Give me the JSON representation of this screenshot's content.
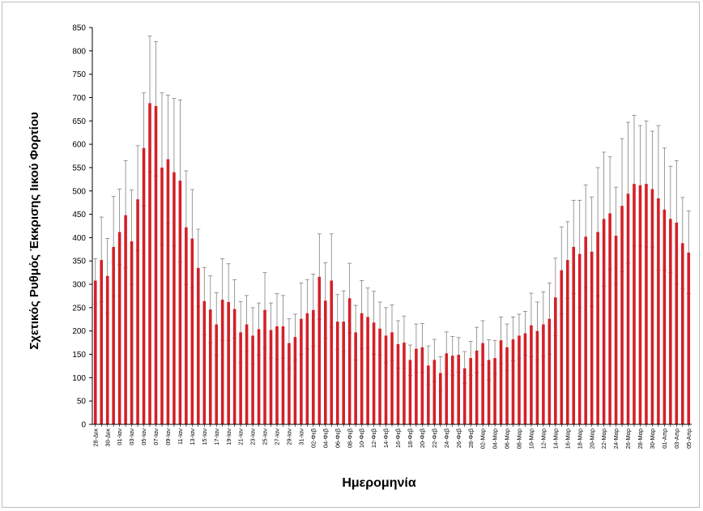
{
  "chart_data": {
    "type": "bar",
    "title": "",
    "xlabel": "Ημερομηνία",
    "ylabel": "Σχετικός Ρυθμός Έκκρισης Ιικού Φορτίου",
    "ylim": [
      0,
      850
    ],
    "yticks": [
      0,
      50,
      100,
      150,
      200,
      250,
      300,
      350,
      400,
      450,
      500,
      550,
      600,
      650,
      700,
      750,
      800,
      850
    ],
    "grid": false,
    "legend": "none",
    "colors": {
      "bar": "#d42027",
      "error_bar": "#808080",
      "axis": "#000000"
    },
    "categories": [
      "28-Δεκ",
      "29-Δεκ",
      "30-Δεκ",
      "31-Δεκ",
      "01-Ιαν",
      "02-Ιαν",
      "03-Ιαν",
      "04-Ιαν",
      "05-Ιαν",
      "06-Ιαν",
      "07-Ιαν",
      "08-Ιαν",
      "09-Ιαν",
      "10-Ιαν",
      "11-Ιαν",
      "12-Ιαν",
      "13-Ιαν",
      "14-Ιαν",
      "15-Ιαν",
      "16-Ιαν",
      "17-Ιαν",
      "18-Ιαν",
      "19-Ιαν",
      "20-Ιαν",
      "21-Ιαν",
      "22-Ιαν",
      "23-Ιαν",
      "24-Ιαν",
      "25-Ιαν",
      "26-Ιαν",
      "27-Ιαν",
      "28-Ιαν",
      "29-Ιαν",
      "30-Ιαν",
      "31-Ιαν",
      "01-Φεβ",
      "02-Φεβ",
      "03-Φεβ",
      "04-Φεβ",
      "05-Φεβ",
      "06-Φεβ",
      "07-Φεβ",
      "08-Φεβ",
      "09-Φεβ",
      "10-Φεβ",
      "11-Φεβ",
      "12-Φεβ",
      "13-Φεβ",
      "14-Φεβ",
      "15-Φεβ",
      "16-Φεβ",
      "17-Φεβ",
      "18-Φεβ",
      "19-Φεβ",
      "20-Φεβ",
      "21-Φεβ",
      "22-Φεβ",
      "23-Φεβ",
      "24-Φεβ",
      "25-Φεβ",
      "26-Φεβ",
      "27-Φεβ",
      "28-Φεβ",
      "01-Μαρ",
      "02-Μαρ",
      "03-Μαρ",
      "04-Μαρ",
      "05-Μαρ",
      "06-Μαρ",
      "07-Μαρ",
      "08-Μαρ",
      "09-Μαρ",
      "10-Μαρ",
      "11-Μαρ",
      "12-Μαρ",
      "13-Μαρ",
      "14-Μαρ",
      "15-Μαρ",
      "16-Μαρ",
      "17-Μαρ",
      "18-Μαρ",
      "19-Μαρ",
      "20-Μαρ",
      "21-Μαρ",
      "22-Μαρ",
      "23-Μαρ",
      "24-Μαρ",
      "25-Μαρ",
      "26-Μαρ",
      "27-Μαρ",
      "28-Μαρ",
      "29-Μαρ",
      "30-Μαρ",
      "31-Μαρ",
      "01-Απρ",
      "02-Απρ",
      "03-Απρ",
      "04-Απρ",
      "05-Απρ"
    ],
    "label_every": 2,
    "values": [
      308,
      352,
      318,
      380,
      412,
      448,
      392,
      482,
      592,
      688,
      682,
      550,
      568,
      540,
      522,
      422,
      398,
      335,
      264,
      246,
      214,
      267,
      262,
      247,
      197,
      214,
      190,
      204,
      245,
      202,
      210,
      210,
      174,
      187,
      226,
      238,
      245,
      316,
      265,
      308,
      220,
      220,
      270,
      197,
      238,
      230,
      218,
      205,
      190,
      197,
      172,
      175,
      138,
      162,
      165,
      126,
      138,
      110,
      152,
      147,
      149,
      120,
      142,
      158,
      174,
      138,
      142,
      180,
      165,
      182,
      190,
      195,
      212,
      200,
      214,
      226,
      272,
      330,
      352,
      380,
      365,
      402,
      370,
      412,
      440,
      452,
      404,
      468,
      494,
      515,
      512,
      515,
      504,
      484,
      460,
      440,
      432,
      388,
      368
    ],
    "error_upper": [
      355,
      444,
      398,
      488,
      504,
      565,
      502,
      597,
      710,
      832,
      820,
      710,
      705,
      698,
      695,
      543,
      503,
      418,
      336,
      318,
      282,
      355,
      344,
      310,
      263,
      276,
      250,
      260,
      325,
      260,
      280,
      276,
      226,
      236,
      303,
      310,
      322,
      408,
      346,
      408,
      278,
      286,
      345,
      255,
      308,
      292,
      285,
      262,
      250,
      256,
      222,
      232,
      170,
      215,
      216,
      168,
      182,
      145,
      198,
      188,
      186,
      156,
      178,
      208,
      222,
      181,
      180,
      230,
      215,
      230,
      236,
      242,
      281,
      262,
      284,
      303,
      356,
      423,
      434,
      480,
      480,
      513,
      487,
      550,
      583,
      573,
      508,
      612,
      647,
      662,
      640,
      650,
      628,
      640,
      592,
      553,
      565,
      486,
      457
    ],
    "error_lower": [
      258,
      262,
      238,
      275,
      342,
      335,
      300,
      372,
      468,
      540,
      532,
      385,
      430,
      382,
      348,
      300,
      292,
      252,
      192,
      175,
      148,
      180,
      180,
      185,
      132,
      155,
      130,
      148,
      165,
      142,
      140,
      142,
      120,
      138,
      150,
      162,
      168,
      225,
      185,
      208,
      160,
      155,
      196,
      138,
      162,
      164,
      150,
      148,
      132,
      137,
      120,
      120,
      105,
      110,
      112,
      85,
      92,
      72,
      108,
      105,
      112,
      88,
      105,
      110,
      128,
      95,
      108,
      130,
      115,
      136,
      142,
      148,
      145,
      138,
      146,
      150,
      190,
      237,
      270,
      280,
      250,
      292,
      253,
      275,
      296,
      332,
      300,
      327,
      345,
      382,
      382,
      380,
      380,
      330,
      330,
      325,
      300,
      290,
      280
    ]
  }
}
